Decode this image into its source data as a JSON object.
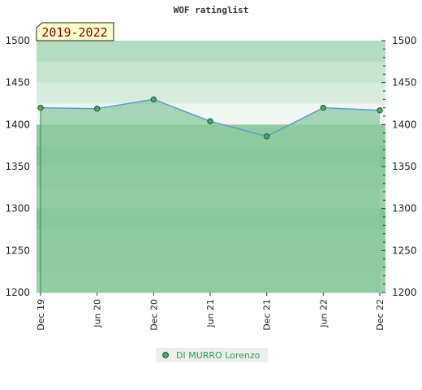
{
  "chart_data": {
    "type": "line",
    "title": "WOF ratinglist",
    "period_label": "2019-2022",
    "x_ticks": [
      "Dec 19",
      "Jun 20",
      "Dec 20",
      "Jun 21",
      "Dec 21",
      "Jun 22",
      "Dec 22"
    ],
    "y_ticks": [
      1200,
      1250,
      1300,
      1350,
      1400,
      1450,
      1500
    ],
    "ylim": [
      1200,
      1500
    ],
    "grid": false,
    "legend_position": "bottom",
    "series": [
      {
        "name": "DI MURRO Lorenzo",
        "x": [
          "Dec 19",
          "Jun 20",
          "Dec 20",
          "Jun 21",
          "Dec 21",
          "Jun 22",
          "Dec 22"
        ],
        "values": [
          1420,
          1419,
          1430,
          1404,
          1386,
          1420,
          1417
        ]
      }
    ],
    "colors": {
      "line": "#5b9bd5",
      "area": "#8cc99f",
      "marker": "#4aa66a",
      "legend_text": "#2e9e4a",
      "badge_bg": "#ffffcc",
      "badge_text": "#8b0000"
    }
  }
}
